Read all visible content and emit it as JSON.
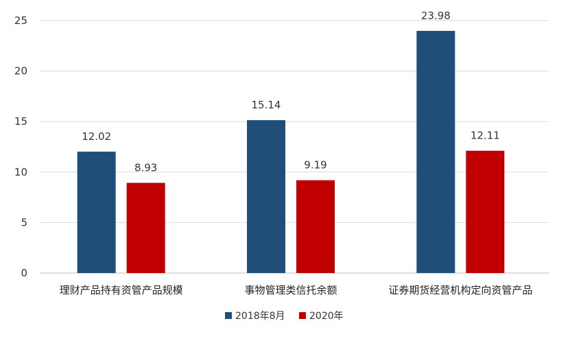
{
  "chart_data": {
    "type": "bar",
    "title": "",
    "xlabel": "",
    "ylabel": "",
    "categories": [
      "理财产品持有资管产品规模",
      "事物管理类信托余额",
      "证券期货经营机构定向资管产品"
    ],
    "series": [
      {
        "name": "2018年8月",
        "color": "#1f4e79",
        "values": [
          12.02,
          15.14,
          23.98
        ],
        "labels": [
          "12.02",
          "15.14",
          "23.98"
        ]
      },
      {
        "name": "2020年",
        "color": "#c00000",
        "values": [
          8.93,
          9.19,
          12.11
        ],
        "labels": [
          "8.93",
          "9.19",
          "12.11"
        ]
      }
    ],
    "ylim": [
      0,
      25
    ],
    "yticks": [
      "0",
      "5",
      "10",
      "15",
      "20",
      "25"
    ],
    "grid": true,
    "legend_position": "bottom"
  }
}
